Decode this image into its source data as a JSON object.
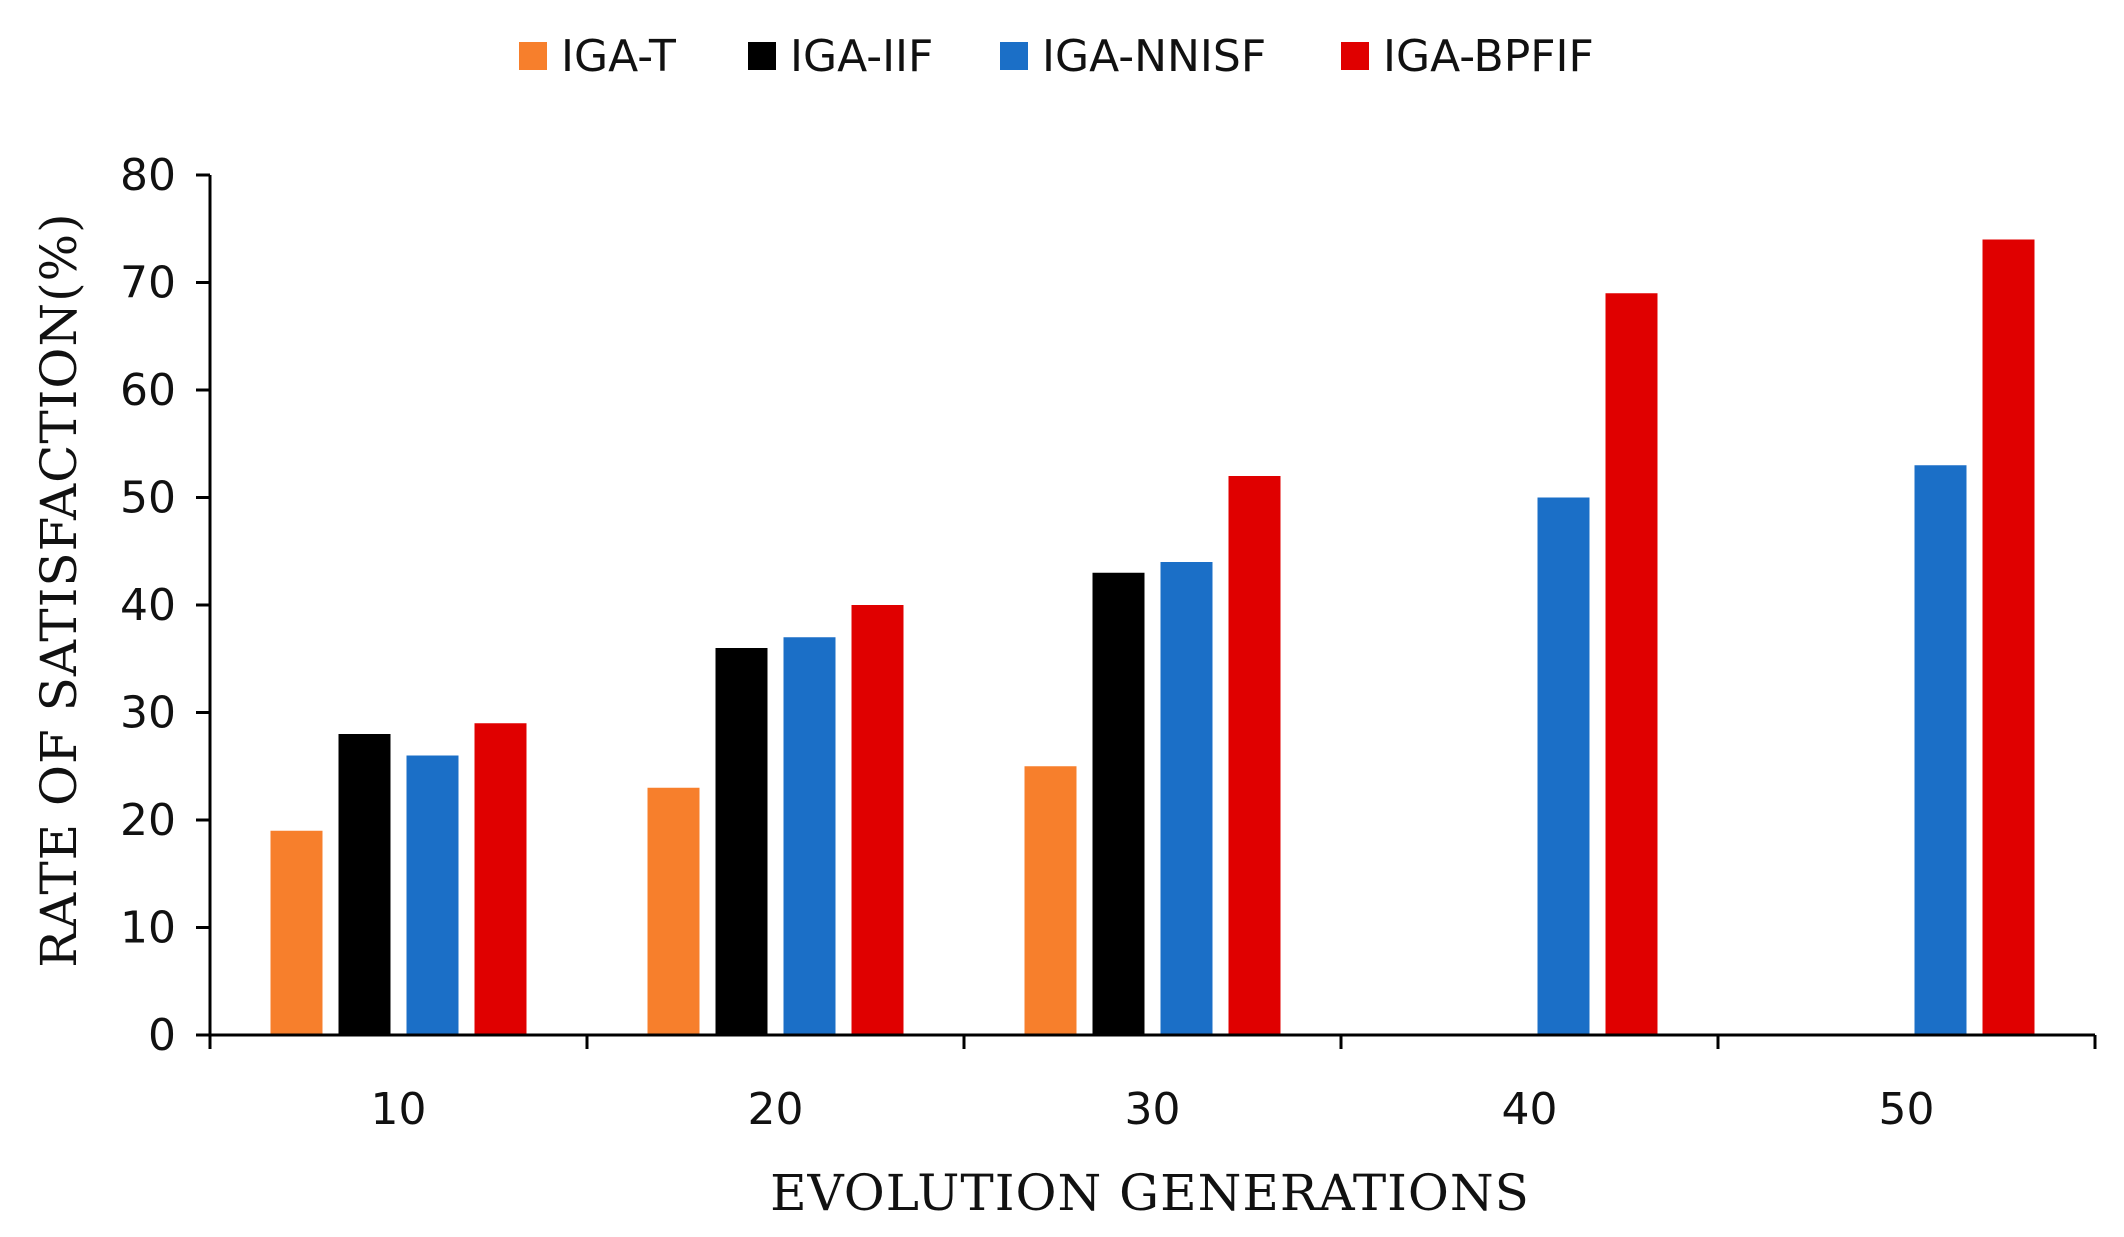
{
  "chart_data": {
    "type": "bar",
    "title": "",
    "xlabel": "EVOLUTION GENERATIONS",
    "ylabel": "RATE OF SATISFACTION(%)",
    "categories": [
      "10",
      "20",
      "30",
      "40",
      "50"
    ],
    "ylim": [
      0,
      80
    ],
    "yticks": [
      0,
      10,
      20,
      30,
      40,
      50,
      60,
      70,
      80
    ],
    "grid": false,
    "legend_position": "top",
    "series": [
      {
        "name": "IGA-T",
        "color": "#F77F2C",
        "values": [
          19,
          23,
          25,
          null,
          null
        ]
      },
      {
        "name": "IGA-IIF",
        "color": "#000000",
        "values": [
          28,
          36,
          43,
          null,
          null
        ]
      },
      {
        "name": "IGA-NNISF",
        "color": "#1B6FC7",
        "values": [
          26,
          37,
          44,
          50,
          53
        ]
      },
      {
        "name": "IGA-BPFIF",
        "color": "#E00000",
        "values": [
          29,
          40,
          52,
          69,
          74
        ]
      }
    ]
  }
}
